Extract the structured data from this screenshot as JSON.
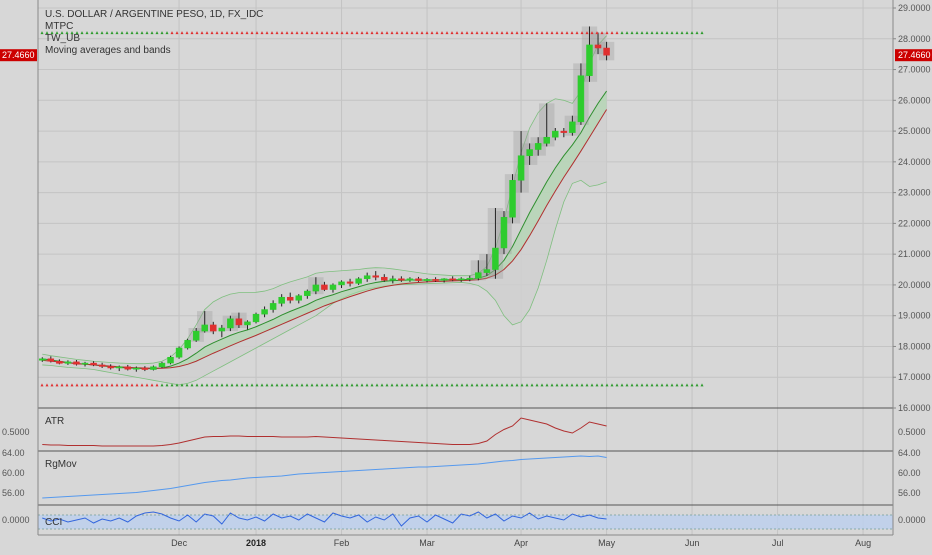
{
  "chart_data": [
    {
      "type": "candlestick",
      "legend": [
        "U.S. DOLLAR / ARGENTINE PESO, 1D, FX_IDC",
        "MTPC",
        "TW_UB",
        "Moving averages and bands"
      ],
      "ylim": [
        16.0,
        29.0
      ],
      "y_ticks": [
        "29.0000",
        "28.0000",
        "27.0000",
        "26.0000",
        "25.0000",
        "24.0000",
        "23.0000",
        "22.0000",
        "21.0000",
        "20.0000",
        "19.0000",
        "18.0000",
        "17.0000",
        "16.0000"
      ],
      "last_price": "27.4660",
      "upper_dotted_level": 28.2,
      "lower_dotted_level": 16.75,
      "candles": [
        [
          17.55,
          17.65,
          17.5,
          17.6
        ],
        [
          17.6,
          17.68,
          17.48,
          17.52
        ],
        [
          17.52,
          17.58,
          17.42,
          17.45
        ],
        [
          17.45,
          17.55,
          17.4,
          17.5
        ],
        [
          17.5,
          17.56,
          17.38,
          17.42
        ],
        [
          17.42,
          17.5,
          17.35,
          17.46
        ],
        [
          17.46,
          17.52,
          17.36,
          17.4
        ],
        [
          17.4,
          17.47,
          17.3,
          17.35
        ],
        [
          17.35,
          17.42,
          17.25,
          17.3
        ],
        [
          17.3,
          17.38,
          17.2,
          17.34
        ],
        [
          17.34,
          17.4,
          17.22,
          17.26
        ],
        [
          17.26,
          17.35,
          17.18,
          17.3
        ],
        [
          17.3,
          17.36,
          17.2,
          17.25
        ],
        [
          17.25,
          17.38,
          17.22,
          17.34
        ],
        [
          17.34,
          17.5,
          17.3,
          17.46
        ],
        [
          17.46,
          17.7,
          17.42,
          17.65
        ],
        [
          17.65,
          18.0,
          17.6,
          17.95
        ],
        [
          17.95,
          18.25,
          17.9,
          18.2
        ],
        [
          18.2,
          18.6,
          18.15,
          18.5
        ],
        [
          18.5,
          19.15,
          18.45,
          18.7
        ],
        [
          18.7,
          18.8,
          18.4,
          18.5
        ],
        [
          18.5,
          18.7,
          18.3,
          18.6
        ],
        [
          18.6,
          19.0,
          18.5,
          18.9
        ],
        [
          18.9,
          19.1,
          18.6,
          18.7
        ],
        [
          18.7,
          18.85,
          18.55,
          18.8
        ],
        [
          18.8,
          19.1,
          18.75,
          19.05
        ],
        [
          19.05,
          19.3,
          18.95,
          19.2
        ],
        [
          19.2,
          19.5,
          19.1,
          19.4
        ],
        [
          19.4,
          19.7,
          19.3,
          19.6
        ],
        [
          19.6,
          19.75,
          19.4,
          19.5
        ],
        [
          19.5,
          19.7,
          19.4,
          19.65
        ],
        [
          19.65,
          19.85,
          19.55,
          19.8
        ],
        [
          19.8,
          20.25,
          19.7,
          20.0
        ],
        [
          20.0,
          20.1,
          19.8,
          19.85
        ],
        [
          19.85,
          20.05,
          19.75,
          20.0
        ],
        [
          20.0,
          20.15,
          19.9,
          20.1
        ],
        [
          20.1,
          20.2,
          19.95,
          20.05
        ],
        [
          20.05,
          20.25,
          20.0,
          20.2
        ],
        [
          20.2,
          20.4,
          20.1,
          20.3
        ],
        [
          20.3,
          20.45,
          20.15,
          20.25
        ],
        [
          20.25,
          20.35,
          20.1,
          20.15
        ],
        [
          20.15,
          20.3,
          20.05,
          20.2
        ],
        [
          20.2,
          20.28,
          20.1,
          20.15
        ],
        [
          20.15,
          20.25,
          20.1,
          20.2
        ],
        [
          20.2,
          20.26,
          20.1,
          20.14
        ],
        [
          20.14,
          20.22,
          20.08,
          20.18
        ],
        [
          20.18,
          20.25,
          20.1,
          20.15
        ],
        [
          20.15,
          20.22,
          20.08,
          20.2
        ],
        [
          20.2,
          20.28,
          20.12,
          20.16
        ],
        [
          20.16,
          20.25,
          20.1,
          20.2
        ],
        [
          20.2,
          20.3,
          20.12,
          20.22
        ],
        [
          20.22,
          20.8,
          20.15,
          20.4
        ],
        [
          20.4,
          21.0,
          20.3,
          20.5
        ],
        [
          20.5,
          22.5,
          20.2,
          21.2
        ],
        [
          21.2,
          22.4,
          21.0,
          22.2
        ],
        [
          22.2,
          23.6,
          22.0,
          23.4
        ],
        [
          23.4,
          25.0,
          23.0,
          24.2
        ],
        [
          24.2,
          24.6,
          23.9,
          24.4
        ],
        [
          24.4,
          24.8,
          24.2,
          24.6
        ],
        [
          24.6,
          25.9,
          24.5,
          24.8
        ],
        [
          24.8,
          25.1,
          24.7,
          25.0
        ],
        [
          25.0,
          25.1,
          24.8,
          24.95
        ],
        [
          24.95,
          25.5,
          24.85,
          25.3
        ],
        [
          25.3,
          27.2,
          25.2,
          26.8
        ],
        [
          26.8,
          28.4,
          26.6,
          27.8
        ],
        [
          27.8,
          28.2,
          27.5,
          27.7
        ],
        [
          27.7,
          27.9,
          27.3,
          27.466
        ]
      ],
      "ma_fast": [
        17.6,
        17.56,
        17.52,
        17.48,
        17.45,
        17.42,
        17.4,
        17.37,
        17.34,
        17.32,
        17.3,
        17.29,
        17.28,
        17.28,
        17.3,
        17.36,
        17.46,
        17.6,
        17.78,
        17.98,
        18.12,
        18.24,
        18.36,
        18.46,
        18.54,
        18.64,
        18.76,
        18.88,
        19.02,
        19.14,
        19.25,
        19.36,
        19.5,
        19.6,
        19.68,
        19.78,
        19.86,
        19.94,
        20.02,
        20.08,
        20.12,
        20.14,
        20.15,
        20.16,
        20.16,
        20.16,
        20.16,
        20.17,
        20.17,
        20.17,
        20.18,
        20.22,
        20.3,
        20.5,
        20.8,
        21.25,
        21.8,
        22.35,
        22.85,
        23.35,
        23.8,
        24.2,
        24.55,
        24.95,
        25.45,
        25.9,
        26.3
      ],
      "ma_slow": [
        17.55,
        17.52,
        17.5,
        17.47,
        17.44,
        17.42,
        17.4,
        17.38,
        17.36,
        17.34,
        17.32,
        17.31,
        17.3,
        17.29,
        17.29,
        17.31,
        17.35,
        17.42,
        17.52,
        17.65,
        17.78,
        17.9,
        18.02,
        18.14,
        18.25,
        18.36,
        18.48,
        18.6,
        18.72,
        18.84,
        18.96,
        19.08,
        19.2,
        19.32,
        19.42,
        19.52,
        19.62,
        19.71,
        19.8,
        19.88,
        19.94,
        19.99,
        20.03,
        20.06,
        20.08,
        20.1,
        20.11,
        20.12,
        20.13,
        20.14,
        20.15,
        20.17,
        20.22,
        20.32,
        20.5,
        20.78,
        21.15,
        21.6,
        22.08,
        22.58,
        23.05,
        23.5,
        23.92,
        24.35,
        24.8,
        25.25,
        25.7
      ],
      "band_upper": [
        17.75,
        17.7,
        17.66,
        17.62,
        17.58,
        17.55,
        17.52,
        17.5,
        17.48,
        17.46,
        17.45,
        17.44,
        17.44,
        17.46,
        17.52,
        17.66,
        17.9,
        18.25,
        18.7,
        19.2,
        19.45,
        19.6,
        19.7,
        19.75,
        19.75,
        19.76,
        19.8,
        19.88,
        20.0,
        20.1,
        20.18,
        20.26,
        20.38,
        20.42,
        20.44,
        20.46,
        20.48,
        20.5,
        20.54,
        20.56,
        20.55,
        20.52,
        20.48,
        20.44,
        20.4,
        20.36,
        20.34,
        20.32,
        20.3,
        20.3,
        20.3,
        20.38,
        20.6,
        21.2,
        22.1,
        23.2,
        24.3,
        25.1,
        25.6,
        25.9,
        26.05,
        26.0,
        25.9,
        26.3,
        27.2,
        27.8,
        28.1
      ],
      "band_lower": [
        17.4,
        17.38,
        17.35,
        17.32,
        17.3,
        17.28,
        17.25,
        17.2,
        17.15,
        17.1,
        17.05,
        17.0,
        16.95,
        16.9,
        16.85,
        16.8,
        16.75,
        16.8,
        16.9,
        17.05,
        17.2,
        17.35,
        17.5,
        17.65,
        17.8,
        17.95,
        18.1,
        18.25,
        18.4,
        18.55,
        18.7,
        18.85,
        19.0,
        19.2,
        19.4,
        19.55,
        19.68,
        19.78,
        19.86,
        19.92,
        19.96,
        19.99,
        20.01,
        20.02,
        20.03,
        20.04,
        20.05,
        20.06,
        20.07,
        20.08,
        20.05,
        19.98,
        19.8,
        19.5,
        19.0,
        18.7,
        18.8,
        19.2,
        19.9,
        20.8,
        21.8,
        22.7,
        23.3,
        23.4,
        23.2,
        23.25,
        23.35
      ]
    },
    {
      "type": "line",
      "label": "ATR",
      "ylim": [
        0.2,
        0.9
      ],
      "y_ticks": [
        "0.5000"
      ],
      "values": [
        0.25,
        0.24,
        0.24,
        0.23,
        0.23,
        0.23,
        0.23,
        0.22,
        0.22,
        0.22,
        0.22,
        0.22,
        0.22,
        0.22,
        0.23,
        0.25,
        0.28,
        0.32,
        0.36,
        0.4,
        0.41,
        0.41,
        0.42,
        0.42,
        0.41,
        0.41,
        0.41,
        0.41,
        0.4,
        0.4,
        0.4,
        0.4,
        0.41,
        0.4,
        0.39,
        0.38,
        0.37,
        0.36,
        0.35,
        0.34,
        0.33,
        0.32,
        0.31,
        0.3,
        0.29,
        0.28,
        0.27,
        0.26,
        0.25,
        0.25,
        0.25,
        0.27,
        0.32,
        0.45,
        0.55,
        0.62,
        0.78,
        0.74,
        0.7,
        0.66,
        0.58,
        0.52,
        0.48,
        0.58,
        0.7,
        0.66,
        0.62
      ]
    },
    {
      "type": "line",
      "label": "RgMov",
      "ylim": [
        54.0,
        64.0
      ],
      "y_ticks": [
        "64.00",
        "60.00",
        "56.00"
      ],
      "values": [
        55.0,
        55.1,
        55.2,
        55.3,
        55.4,
        55.5,
        55.6,
        55.7,
        55.8,
        55.9,
        56.0,
        56.1,
        56.3,
        56.5,
        56.7,
        56.9,
        57.2,
        57.5,
        57.8,
        58.1,
        58.3,
        58.5,
        58.6,
        58.8,
        59.0,
        59.1,
        59.2,
        59.3,
        59.4,
        59.6,
        59.8,
        59.9,
        60.0,
        60.1,
        60.2,
        60.3,
        60.4,
        60.5,
        60.6,
        60.7,
        60.8,
        60.9,
        61.0,
        61.1,
        61.2,
        61.2,
        61.3,
        61.4,
        61.5,
        61.6,
        61.7,
        61.8,
        62.0,
        62.2,
        62.4,
        62.5,
        62.7,
        62.8,
        62.9,
        63.0,
        63.1,
        63.2,
        63.3,
        63.4,
        63.3,
        63.4,
        63.1
      ]
    },
    {
      "type": "line",
      "label": "CCI",
      "ylim": [
        -0.6,
        0.6
      ],
      "y_ticks": [
        "0.0000"
      ],
      "values": [
        0.1,
        -0.05,
        0.05,
        -0.1,
        0.0,
        0.1,
        -0.15,
        0.05,
        -0.05,
        0.1,
        -0.1,
        0.2,
        0.35,
        0.4,
        0.3,
        0.1,
        -0.05,
        0.25,
        -0.1,
        0.3,
        0.2,
        -0.2,
        0.35,
        0.1,
        0.0,
        0.15,
        -0.05,
        0.3,
        0.1,
        0.2,
        0.0,
        0.3,
        0.1,
        -0.1,
        0.35,
        0.2,
        0.1,
        0.25,
        -0.1,
        0.15,
        0.0,
        0.3,
        -0.3,
        0.1,
        0.2,
        -0.1,
        0.25,
        0.05,
        -0.15,
        0.3,
        0.2,
        0.4,
        0.1,
        0.3,
        -0.05,
        0.2,
        0.1,
        0.35,
        0.05,
        0.2,
        0.1,
        0.0,
        0.3,
        0.15,
        0.25,
        0.1,
        0.05
      ]
    }
  ],
  "x_axis": {
    "labels": [
      "Dec",
      "2018",
      "Feb",
      "Mar",
      "Apr",
      "May",
      "Jun",
      "Jul",
      "Aug"
    ],
    "label_bar_index": [
      16,
      25,
      35,
      45,
      56,
      66,
      76,
      86,
      96
    ],
    "total_bars": 100
  },
  "colors": {
    "background": "#d7d7d7",
    "up_candle": "#2ecc2e",
    "down_candle": "#e03030",
    "ma_fast": "#2f8f2f",
    "ma_slow": "#b03030",
    "band_line": "#7fbf7f",
    "band_fill": "#cfcfcf",
    "dotted_upper": "#2e9b2e",
    "dotted_upper_alt": "#e03030",
    "dotted_lower": "#2e9b2e",
    "atr_line": "#b03030",
    "rgmov_line": "#5599ee",
    "cci_line": "#3366dd",
    "cci_band": "#bcd0ef",
    "price_tag": "#cc0000",
    "grid": "#c4c4c4"
  }
}
